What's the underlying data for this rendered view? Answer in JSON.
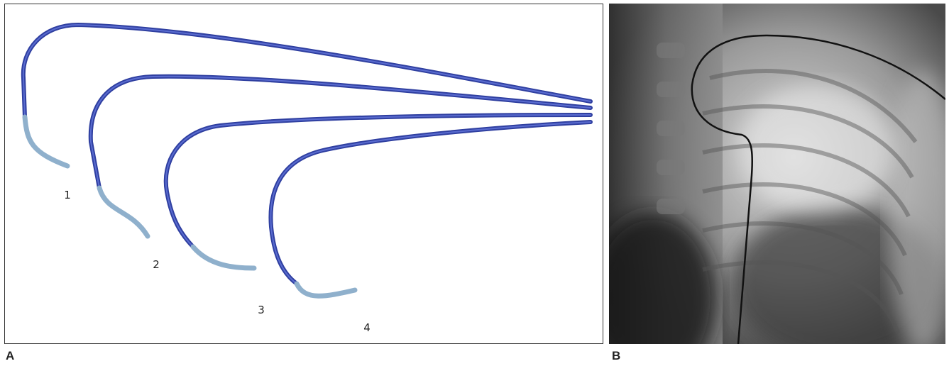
{
  "panels": [
    {
      "label": "A",
      "items": [
        "1",
        "2",
        "3",
        "4"
      ]
    },
    {
      "label": "B"
    }
  ]
}
